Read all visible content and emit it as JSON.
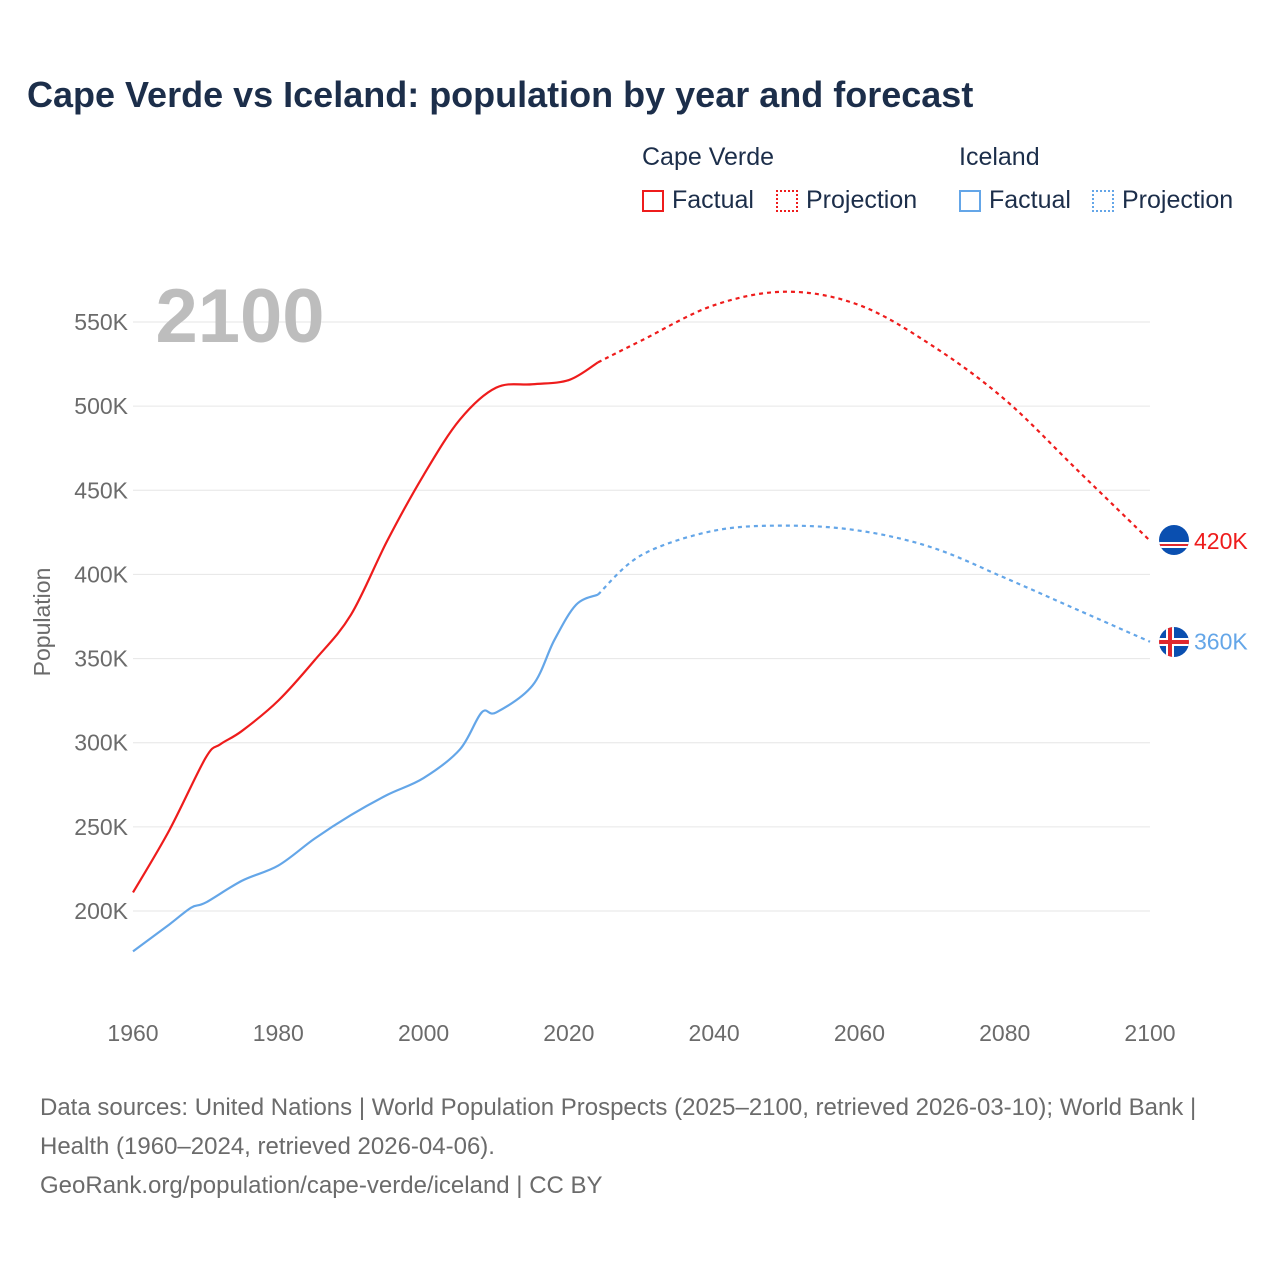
{
  "title": "Cape Verde vs Iceland: population by year and forecast",
  "legend": {
    "groups": [
      {
        "name": "Cape Verde",
        "color": "#ee1c1c",
        "factual": "Factual",
        "projection": "Projection"
      },
      {
        "name": "Iceland",
        "color": "#64a6e8",
        "factual": "Factual",
        "projection": "Projection"
      }
    ]
  },
  "year_label": "2100",
  "footer": {
    "sources": "Data sources: United Nations | World Population Prospects (2025–2100, retrieved 2026-03-10); World Bank | Health (1960–2024, retrieved 2026-04-06).",
    "link": "GeoRank.org/population/cape-verde/iceland | CC BY"
  },
  "chart_data": {
    "type": "line",
    "title": "Cape Verde vs Iceland: population by year and forecast",
    "xlabel": "",
    "ylabel": "Population",
    "xlim": [
      1960,
      2100
    ],
    "ylim": [
      150000,
      575000
    ],
    "x_ticks": [
      "1960",
      "1980",
      "2000",
      "2020",
      "2040",
      "2060",
      "2080",
      "2100"
    ],
    "y_ticks": [
      {
        "v": 200000,
        "label": "200K"
      },
      {
        "v": 250000,
        "label": "250K"
      },
      {
        "v": 300000,
        "label": "300K"
      },
      {
        "v": 350000,
        "label": "350K"
      },
      {
        "v": 400000,
        "label": "400K"
      },
      {
        "v": 450000,
        "label": "450K"
      },
      {
        "v": 500000,
        "label": "500K"
      },
      {
        "v": 550000,
        "label": "550K"
      }
    ],
    "grid": true,
    "series": [
      {
        "name": "Cape Verde",
        "color": "#ee1c1c",
        "end_label": "420K",
        "factual": [
          [
            1960,
            211000
          ],
          [
            1965,
            248000
          ],
          [
            1970,
            291000
          ],
          [
            1972,
            299000
          ],
          [
            1975,
            307000
          ],
          [
            1980,
            325000
          ],
          [
            1985,
            349000
          ],
          [
            1990,
            376000
          ],
          [
            1995,
            420000
          ],
          [
            2000,
            459000
          ],
          [
            2005,
            492000
          ],
          [
            2010,
            511000
          ],
          [
            2015,
            513000
          ],
          [
            2020,
            515500
          ],
          [
            2024,
            526000
          ]
        ],
        "projection": [
          [
            2024,
            526000
          ],
          [
            2030,
            539000
          ],
          [
            2040,
            560000
          ],
          [
            2050,
            568000
          ],
          [
            2060,
            560000
          ],
          [
            2070,
            536000
          ],
          [
            2080,
            504000
          ],
          [
            2090,
            462000
          ],
          [
            2100,
            420000
          ]
        ]
      },
      {
        "name": "Iceland",
        "color": "#64a6e8",
        "end_label": "360K",
        "factual": [
          [
            1960,
            176000
          ],
          [
            1965,
            192000
          ],
          [
            1968,
            202000
          ],
          [
            1970,
            205000
          ],
          [
            1975,
            218000
          ],
          [
            1980,
            227000
          ],
          [
            1985,
            243000
          ],
          [
            1990,
            257000
          ],
          [
            1995,
            269000
          ],
          [
            2000,
            279000
          ],
          [
            2005,
            296000
          ],
          [
            2008,
            318000
          ],
          [
            2010,
            318000
          ],
          [
            2015,
            334000
          ],
          [
            2018,
            361000
          ],
          [
            2021,
            382000
          ],
          [
            2024,
            388000
          ]
        ],
        "projection": [
          [
            2024,
            388000
          ],
          [
            2030,
            411500
          ],
          [
            2040,
            426000
          ],
          [
            2050,
            429000
          ],
          [
            2060,
            426000
          ],
          [
            2070,
            416000
          ],
          [
            2080,
            398000
          ],
          [
            2090,
            379000
          ],
          [
            2100,
            360000
          ]
        ]
      }
    ]
  }
}
